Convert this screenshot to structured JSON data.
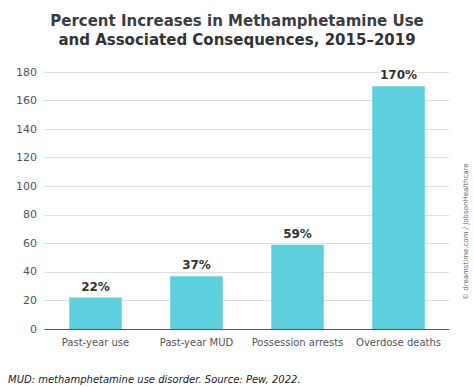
{
  "chart_data": {
    "type": "bar",
    "title": "Percent Increases in Methamphetamine Use",
    "subtitle": "and Associated Consequences, 2015–2019",
    "categories": [
      "Past-year use",
      "Past-year MUD",
      "Possession arrests",
      "Overdose deaths"
    ],
    "values": [
      22,
      37,
      59,
      170
    ],
    "value_labels": [
      "22%",
      "37%",
      "59%",
      "170%"
    ],
    "data_labels": true,
    "color": "#5ecfdc",
    "ylim": [
      0,
      180
    ],
    "yticks": [
      0,
      20,
      40,
      60,
      80,
      100,
      120,
      140,
      160,
      180
    ],
    "grid": true,
    "annotations": [
      "MUD: methamphetamine use disorder. Source: Pew, 2022.",
      "© dreamstime.com / JobsonHealthcare"
    ]
  }
}
